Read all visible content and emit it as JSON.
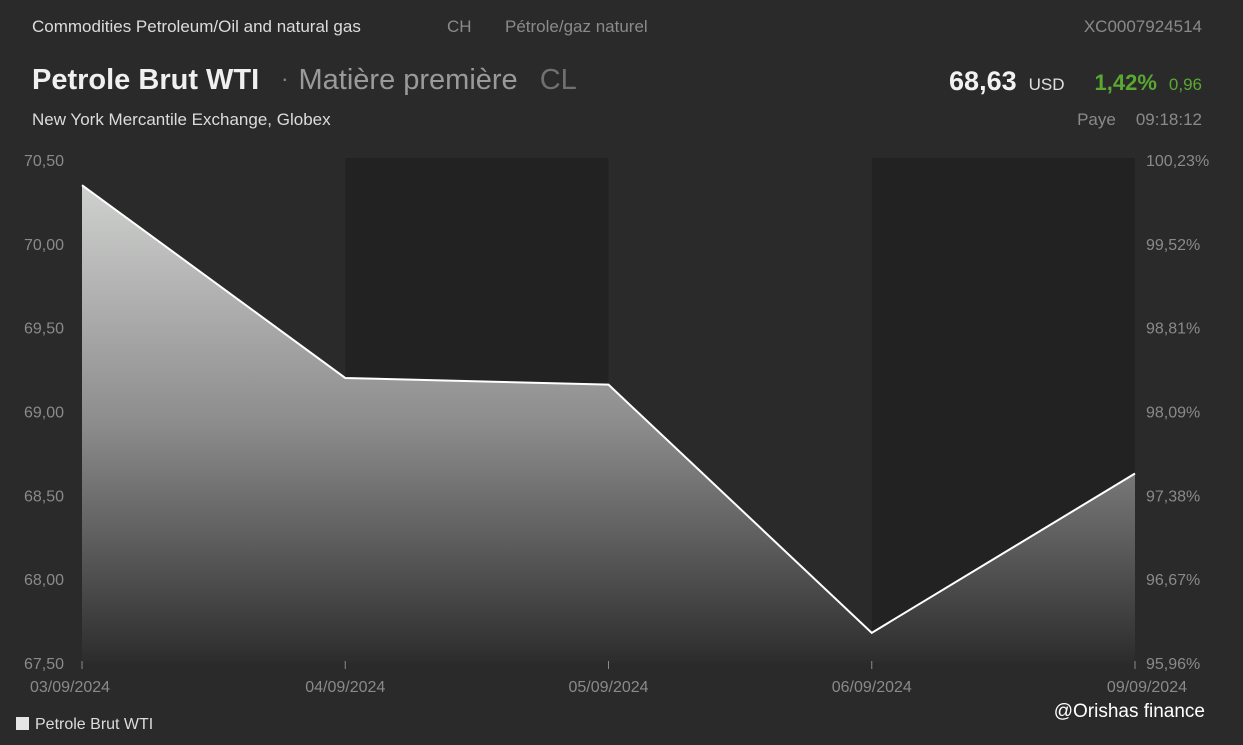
{
  "header": {
    "category": "Commodities Petroleum/Oil and natural gas",
    "country": "CH",
    "category_fr": "Pétrole/gaz naturel",
    "isin": "XC0007924514",
    "name": "Petrole Brut WTI",
    "separator": "·",
    "type": "Matière première",
    "symbol": "CL",
    "price": "68,63",
    "currency": "USD",
    "change_pct": "1,42%",
    "change_abs": "0,96",
    "exchange": "New York Mercantile Exchange, Globex",
    "status": "Paye",
    "time": "09:18:12"
  },
  "legend": {
    "label": "Petrole Brut WTI"
  },
  "watermark": "@Orishas finance",
  "colors": {
    "background": "#2a2a2a",
    "shade": "#222222",
    "line": "#ffffff",
    "positive": "#5aa832",
    "axis_text": "#8a8a8a"
  },
  "chart_data": {
    "type": "area",
    "x": [
      "03/09/2024",
      "04/09/2024",
      "05/09/2024",
      "06/09/2024",
      "09/09/2024"
    ],
    "series": [
      {
        "name": "Petrole Brut WTI",
        "values": [
          70.35,
          69.2,
          69.16,
          67.68,
          68.63
        ]
      }
    ],
    "ylim": [
      67.5,
      70.5
    ],
    "yticks": [
      "70,50",
      "70,00",
      "69,50",
      "69,00",
      "68,50",
      "68,00",
      "67,50"
    ],
    "y2ticks": [
      "100,23%",
      "99,52%",
      "98,81%",
      "98,09%",
      "97,38%",
      "96,67%",
      "95,96%"
    ],
    "shaded_days": [
      "04/09/2024",
      "06/09/2024"
    ],
    "legend_position": "bottom-left"
  }
}
